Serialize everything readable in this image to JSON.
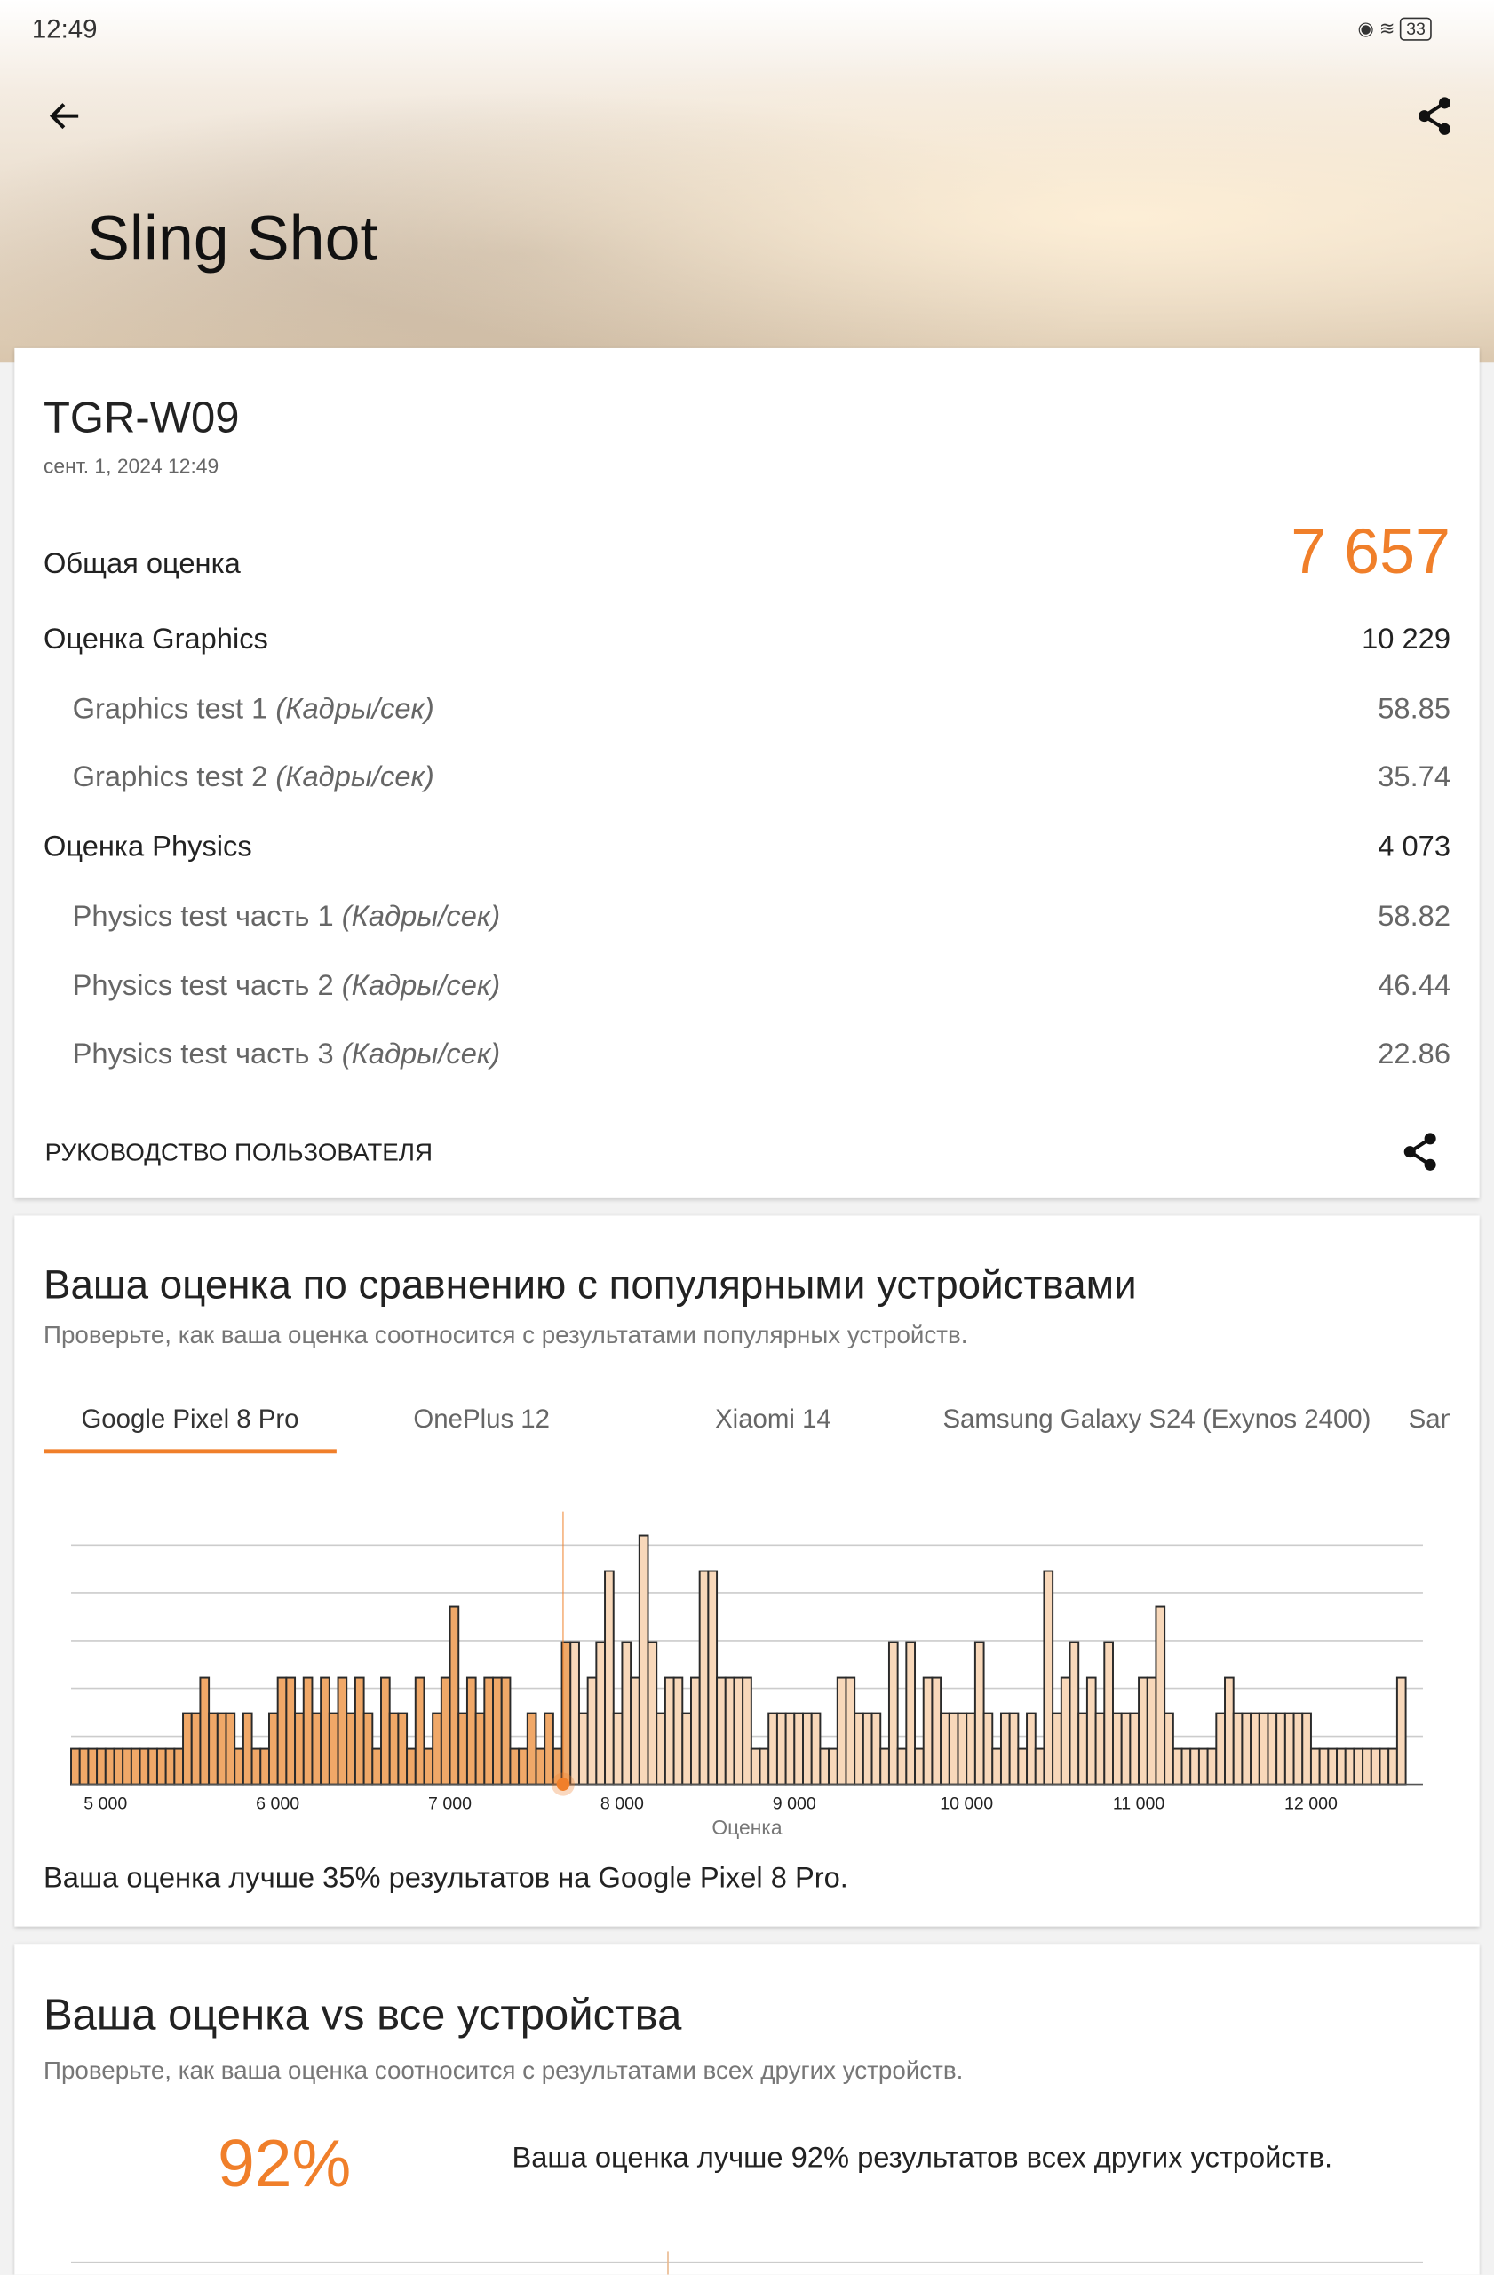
{
  "status_bar": {
    "time": "12:49",
    "battery": "33"
  },
  "header": {
    "title": "Sling Shot"
  },
  "result": {
    "device": "TGR-W09",
    "date": "сент. 1, 2024 12:49",
    "overall": {
      "label": "Общая оценка",
      "value": "7 657"
    },
    "scores": [
      {
        "label": "Оценка Graphics",
        "value": "10 229",
        "tests": [
          {
            "label": "Graphics test 1",
            "unit": "(Кадры/сек)",
            "value": "58.85"
          },
          {
            "label": "Graphics test 2",
            "unit": "(Кадры/сек)",
            "value": "35.74"
          }
        ]
      },
      {
        "label": "Оценка Physics",
        "value": "4 073",
        "tests": [
          {
            "label": "Physics test часть 1",
            "unit": "(Кадры/сек)",
            "value": "58.82"
          },
          {
            "label": "Physics test часть 2",
            "unit": "(Кадры/сек)",
            "value": "46.44"
          },
          {
            "label": "Physics test часть 3",
            "unit": "(Кадры/сек)",
            "value": "22.86"
          }
        ]
      }
    ],
    "guide": "РУКОВОДСТВО ПОЛЬЗОВАТЕЛЯ"
  },
  "comparison": {
    "title": "Ваша оценка по сравнению с популярными устройствами",
    "subtitle": "Проверьте, как ваша оценка соотносится с результатами популярных устройств.",
    "tabs": [
      "Google Pixel 8 Pro",
      "OnePlus 12",
      "Xiaomi 14",
      "Samsung Galaxy S24 (Exynos 2400)",
      "San"
    ],
    "active_tab": 0,
    "summary": "Ваша оценка лучше 35% результатов на Google Pixel 8 Pro."
  },
  "chart_data": {
    "type": "histogram",
    "xlabel": "Оценка",
    "bins": [
      4800,
      4850,
      4900,
      4950,
      5000,
      5050,
      5100,
      5150,
      5200,
      5250,
      5300,
      5350,
      5400,
      5450,
      5500,
      5550,
      5600,
      5650,
      5700,
      5750,
      5800,
      5850,
      5900,
      5950,
      6000,
      6050,
      6100,
      6150,
      6200,
      6250,
      6300,
      6350,
      6400,
      6450,
      6500,
      6550,
      6600,
      6650,
      6700,
      6750,
      6800,
      6850,
      6900,
      6950,
      7000,
      7050,
      7100,
      7150,
      7200,
      7250,
      7300,
      7350,
      7400,
      7450,
      7500,
      7550,
      7600,
      7650,
      7700,
      7750,
      7800,
      7850,
      7900,
      7950,
      8000,
      8050,
      8100,
      8150,
      8200,
      8250,
      8300,
      8350,
      8400,
      8450,
      8500,
      8550,
      8600,
      8650,
      8700,
      8750,
      8800,
      8850,
      8900,
      8950,
      9000,
      9050,
      9100,
      9150,
      9200,
      9250,
      9300,
      9350,
      9400,
      9450,
      9500,
      9550,
      9600,
      9650,
      9700,
      9750,
      9800,
      9850,
      9900,
      9950,
      10000,
      10050,
      10100,
      10150,
      10200,
      10250,
      10300,
      10350,
      10400,
      10450,
      10500,
      10550,
      10600,
      10650,
      10700,
      10750,
      10800,
      10850,
      10900,
      10950,
      11000,
      11050,
      11100,
      11150,
      11200,
      11250,
      11300,
      11350,
      11400,
      11450,
      11500,
      11550,
      11600,
      11650,
      11700,
      11750,
      11800,
      11850,
      11900,
      11950,
      12000,
      12050,
      12100,
      12150,
      12200,
      12250,
      12300,
      12350,
      12400,
      12450,
      12500,
      12550
    ],
    "counts": [
      1,
      1,
      1,
      1,
      1,
      1,
      1,
      1,
      1,
      1,
      1,
      1,
      1,
      2,
      2,
      3,
      2,
      2,
      2,
      1,
      2,
      1,
      1,
      2,
      3,
      3,
      2,
      3,
      2,
      3,
      2,
      3,
      2,
      3,
      2,
      1,
      3,
      2,
      2,
      1,
      3,
      1,
      2,
      3,
      5,
      2,
      3,
      2,
      3,
      3,
      3,
      1,
      1,
      2,
      1,
      2,
      1,
      4,
      4,
      2,
      3,
      4,
      6,
      2,
      4,
      3,
      7,
      4,
      2,
      3,
      3,
      2,
      3,
      6,
      6,
      3,
      3,
      3,
      3,
      1,
      1,
      2,
      2,
      2,
      2,
      2,
      2,
      1,
      1,
      3,
      3,
      2,
      2,
      2,
      1,
      4,
      1,
      4,
      1,
      3,
      3,
      2,
      2,
      2,
      2,
      4,
      2,
      1,
      2,
      2,
      1,
      2,
      1,
      6,
      2,
      3,
      4,
      2,
      3,
      2,
      4,
      2,
      2,
      2,
      3,
      3,
      5,
      2,
      1,
      1,
      1,
      1,
      1,
      2,
      3,
      2,
      2,
      2,
      2,
      2,
      2,
      2,
      2,
      2,
      1,
      1,
      1,
      1,
      1,
      1,
      1,
      1,
      1,
      1,
      3
    ],
    "marker": 7657,
    "color_below": "#f0a868",
    "color_above": "#f8d8ba",
    "marker_color": "#f07f2a",
    "xlim": [
      4800,
      12650
    ],
    "ylim": [
      0,
      7
    ],
    "xticks": [
      {
        "value": 5000,
        "label": "5 000"
      },
      {
        "value": 6000,
        "label": "6 000"
      },
      {
        "value": 7000,
        "label": "7 000"
      },
      {
        "value": 8000,
        "label": "8 000"
      },
      {
        "value": 9000,
        "label": "9 000"
      },
      {
        "value": 10000,
        "label": "10 000"
      },
      {
        "value": 11000,
        "label": "11 000"
      },
      {
        "value": 12000,
        "label": "12 000"
      }
    ],
    "yticks": [
      1.35,
      2.7,
      4.04,
      5.39,
      6.73
    ],
    "grid": true
  },
  "all_devices": {
    "title": "Ваша оценка vs все устройства",
    "subtitle": "Проверьте, как ваша оценка соотносится с результатами всех других устройств.",
    "percent": "92%",
    "summary": "Ваша оценка лучше 92% результатов всех других устройств."
  }
}
